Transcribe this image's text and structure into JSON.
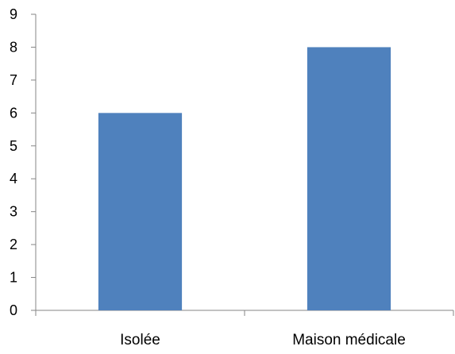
{
  "chart_data": {
    "type": "bar",
    "title": "",
    "xlabel": "",
    "ylabel": "",
    "categories": [
      "Isolée",
      "Maison médicale"
    ],
    "values": [
      6,
      8
    ],
    "ylim": [
      0,
      9
    ],
    "yticks": [
      0,
      1,
      2,
      3,
      4,
      5,
      6,
      7,
      8,
      9
    ],
    "grid": false,
    "legend": "none",
    "bar_color": "#4f81bd",
    "axis_color": "#868686"
  }
}
